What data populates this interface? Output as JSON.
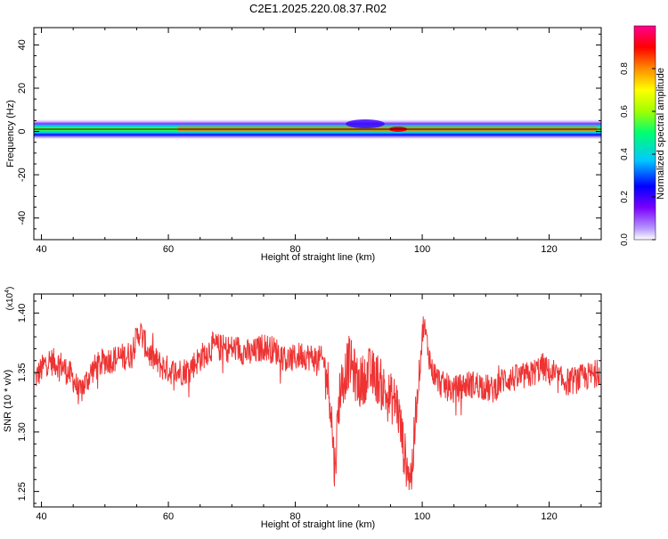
{
  "title": "C2E1.2025.220.08.37.R02",
  "chart_data": [
    {
      "type": "heatmap",
      "xlabel": "Height of straight line (km)",
      "ylabel": "Frequency (Hz)",
      "xlim": [
        38.8,
        128.2
      ],
      "ylim": [
        -50,
        48
      ],
      "x_ticks": [
        "40",
        "60",
        "80",
        "100",
        "120"
      ],
      "y_ticks": [
        "40",
        "20",
        "0",
        "-20",
        "-40"
      ],
      "colorbar": {
        "label": "Normalized spectral amplitude",
        "ticks": [
          "0.0",
          "0.2",
          "0.4",
          "0.6",
          "0.8"
        ],
        "range": [
          0,
          1
        ],
        "colors": [
          "#ffffff",
          "#b89cff",
          "#7a00ff",
          "#0000ff",
          "#00c8ff",
          "#00ff70",
          "#a0ff00",
          "#ffff00",
          "#ff8c00",
          "#ff0000",
          "#ff0090"
        ]
      },
      "band_center_hz": 1.2,
      "band_color": "#000000"
    },
    {
      "type": "line",
      "xlabel": "Height of straight line (km)",
      "ylabel": "SNR (10 * v/v)",
      "y_multiplier": "(x10^4)",
      "xlim": [
        38.8,
        128.2
      ],
      "ylim": [
        1.237,
        1.416
      ],
      "x_ticks": [
        "40",
        "60",
        "80",
        "100",
        "120"
      ],
      "y_ticks": [
        "1.40",
        "1.35",
        "1.30",
        "1.25"
      ],
      "series": [
        {
          "color": "#ee3333",
          "x": [
            39,
            41,
            43,
            45,
            46,
            48,
            50,
            52,
            54,
            55.5,
            57,
            59,
            61,
            63,
            65,
            67,
            69,
            71,
            73,
            75,
            77,
            79,
            81,
            83,
            84.5,
            85.5,
            86.2,
            87,
            88.5,
            90,
            91.5,
            93,
            94.5,
            96,
            97.3,
            98.3,
            99.3,
            100.2,
            101.5,
            103,
            105,
            107,
            109,
            111,
            113,
            115,
            117,
            119,
            121,
            123,
            125,
            127,
            128
          ],
          "y": [
            1.345,
            1.36,
            1.357,
            1.345,
            1.332,
            1.352,
            1.36,
            1.362,
            1.365,
            1.385,
            1.365,
            1.355,
            1.35,
            1.352,
            1.362,
            1.372,
            1.37,
            1.37,
            1.365,
            1.372,
            1.368,
            1.36,
            1.365,
            1.362,
            1.36,
            1.33,
            1.268,
            1.335,
            1.36,
            1.34,
            1.35,
            1.345,
            1.33,
            1.325,
            1.278,
            1.262,
            1.335,
            1.392,
            1.352,
            1.34,
            1.335,
            1.34,
            1.34,
            1.335,
            1.345,
            1.345,
            1.348,
            1.355,
            1.345,
            1.342,
            1.345,
            1.348,
            1.352
          ]
        }
      ]
    }
  ]
}
